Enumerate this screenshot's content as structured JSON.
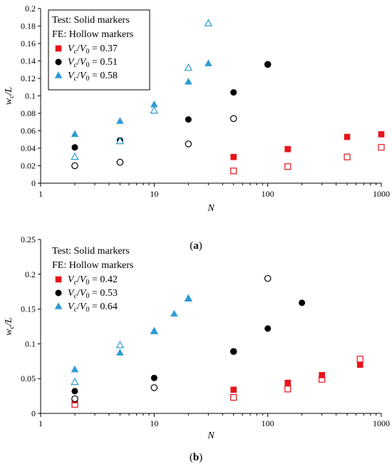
{
  "colors": {
    "red": "#e8131b",
    "black": "#000000",
    "blue": "#2e9bd1"
  },
  "chart_data": [
    {
      "type": "scatter",
      "panel_label": "a",
      "xlabel": "N",
      "ylabel_main": "w",
      "ylabel_sub": "c",
      "ylabel_tail": "/L",
      "x_scale": "log",
      "xlim": [
        1,
        1000
      ],
      "ylim": [
        0,
        0.2
      ],
      "x_ticks": [
        1,
        10,
        100,
        1000
      ],
      "x_tick_labels": [
        "1",
        "10",
        "100",
        "1000"
      ],
      "y_ticks": [
        0,
        0.02,
        0.04,
        0.06,
        0.08,
        0.1,
        0.12,
        0.14,
        0.16,
        0.18,
        0.2
      ],
      "y_tick_labels": [
        "0",
        "0.02",
        "0.04",
        "0.06",
        "0.08",
        "0.1",
        "0.12",
        "0.14",
        "0.16",
        "0.18",
        "0.2"
      ],
      "grid": false,
      "legend": {
        "position": "top-left",
        "line1": "Test: Solid markers",
        "line2": "FE: Hollow markers",
        "entry_prefix_v": "V",
        "entry_sub_c": "c",
        "entry_slash": "/",
        "entry_sub_0": "0",
        "entry_eq": " = "
      },
      "series": [
        {
          "name": "0.37",
          "marker": "square",
          "color": "red",
          "test": [
            [
              50,
              0.03
            ],
            [
              150,
              0.039
            ],
            [
              500,
              0.053
            ],
            [
              1000,
              0.056
            ]
          ],
          "fe": [
            [
              50,
              0.014
            ],
            [
              150,
              0.019
            ],
            [
              500,
              0.03
            ],
            [
              1000,
              0.041
            ]
          ]
        },
        {
          "name": "0.51",
          "marker": "circle",
          "color": "black",
          "test": [
            [
              2,
              0.041
            ],
            [
              5,
              0.049
            ],
            [
              20,
              0.073
            ],
            [
              50,
              0.104
            ],
            [
              100,
              0.136
            ]
          ],
          "fe": [
            [
              2,
              0.02
            ],
            [
              5,
              0.024
            ],
            [
              20,
              0.045
            ],
            [
              50,
              0.074
            ],
            [
              100,
              0.136
            ]
          ]
        },
        {
          "name": "0.58",
          "marker": "triangle",
          "color": "blue",
          "test": [
            [
              2,
              0.056
            ],
            [
              5,
              0.071
            ],
            [
              10,
              0.09
            ],
            [
              20,
              0.116
            ],
            [
              30,
              0.137
            ]
          ],
          "fe": [
            [
              2,
              0.03
            ],
            [
              5,
              0.048
            ],
            [
              10,
              0.083
            ],
            [
              20,
              0.132
            ],
            [
              30,
              0.183
            ]
          ]
        }
      ]
    },
    {
      "type": "scatter",
      "panel_label": "b",
      "xlabel": "N",
      "ylabel_main": "w",
      "ylabel_sub": "c",
      "ylabel_tail": "/L",
      "x_scale": "log",
      "xlim": [
        1,
        1000
      ],
      "ylim": [
        0,
        0.25
      ],
      "x_ticks": [
        1,
        10,
        100,
        1000
      ],
      "x_tick_labels": [
        "1",
        "10",
        "100",
        "1000"
      ],
      "y_ticks": [
        0,
        0.05,
        0.1,
        0.15,
        0.2,
        0.25
      ],
      "y_tick_labels": [
        "0",
        "0.05",
        "0.1",
        "0.15",
        "0.2",
        "0.25"
      ],
      "grid": false,
      "legend": {
        "position": "top-left",
        "line1": "Test: Solid markers",
        "line2": "FE: Hollow markers",
        "entry_prefix_v": "V",
        "entry_sub_c": "c",
        "entry_slash": "/",
        "entry_sub_0": "0",
        "entry_eq": " = "
      },
      "series": [
        {
          "name": "0.42",
          "marker": "square",
          "color": "red",
          "test": [
            [
              2,
              0.019
            ],
            [
              50,
              0.034
            ],
            [
              150,
              0.044
            ],
            [
              300,
              0.055
            ],
            [
              650,
              0.07
            ]
          ],
          "fe": [
            [
              2,
              0.013
            ],
            [
              50,
              0.023
            ],
            [
              150,
              0.035
            ],
            [
              300,
              0.049
            ],
            [
              650,
              0.078
            ]
          ]
        },
        {
          "name": "0.53",
          "marker": "circle",
          "color": "black",
          "test": [
            [
              2,
              0.032
            ],
            [
              10,
              0.051
            ],
            [
              50,
              0.089
            ],
            [
              100,
              0.122
            ],
            [
              200,
              0.159
            ]
          ],
          "fe": [
            [
              2,
              0.021
            ],
            [
              10,
              0.037
            ],
            [
              50,
              0.089
            ],
            [
              100,
              0.194
            ]
          ]
        },
        {
          "name": "0.64",
          "marker": "triangle",
          "color": "blue",
          "test": [
            [
              2,
              0.063
            ],
            [
              5,
              0.087
            ],
            [
              10,
              0.118
            ],
            [
              15,
              0.143
            ],
            [
              20,
              0.165
            ]
          ],
          "fe": [
            [
              2,
              0.045
            ],
            [
              5,
              0.098
            ],
            [
              10,
              0.118
            ],
            [
              20,
              0.165
            ]
          ]
        }
      ]
    }
  ]
}
